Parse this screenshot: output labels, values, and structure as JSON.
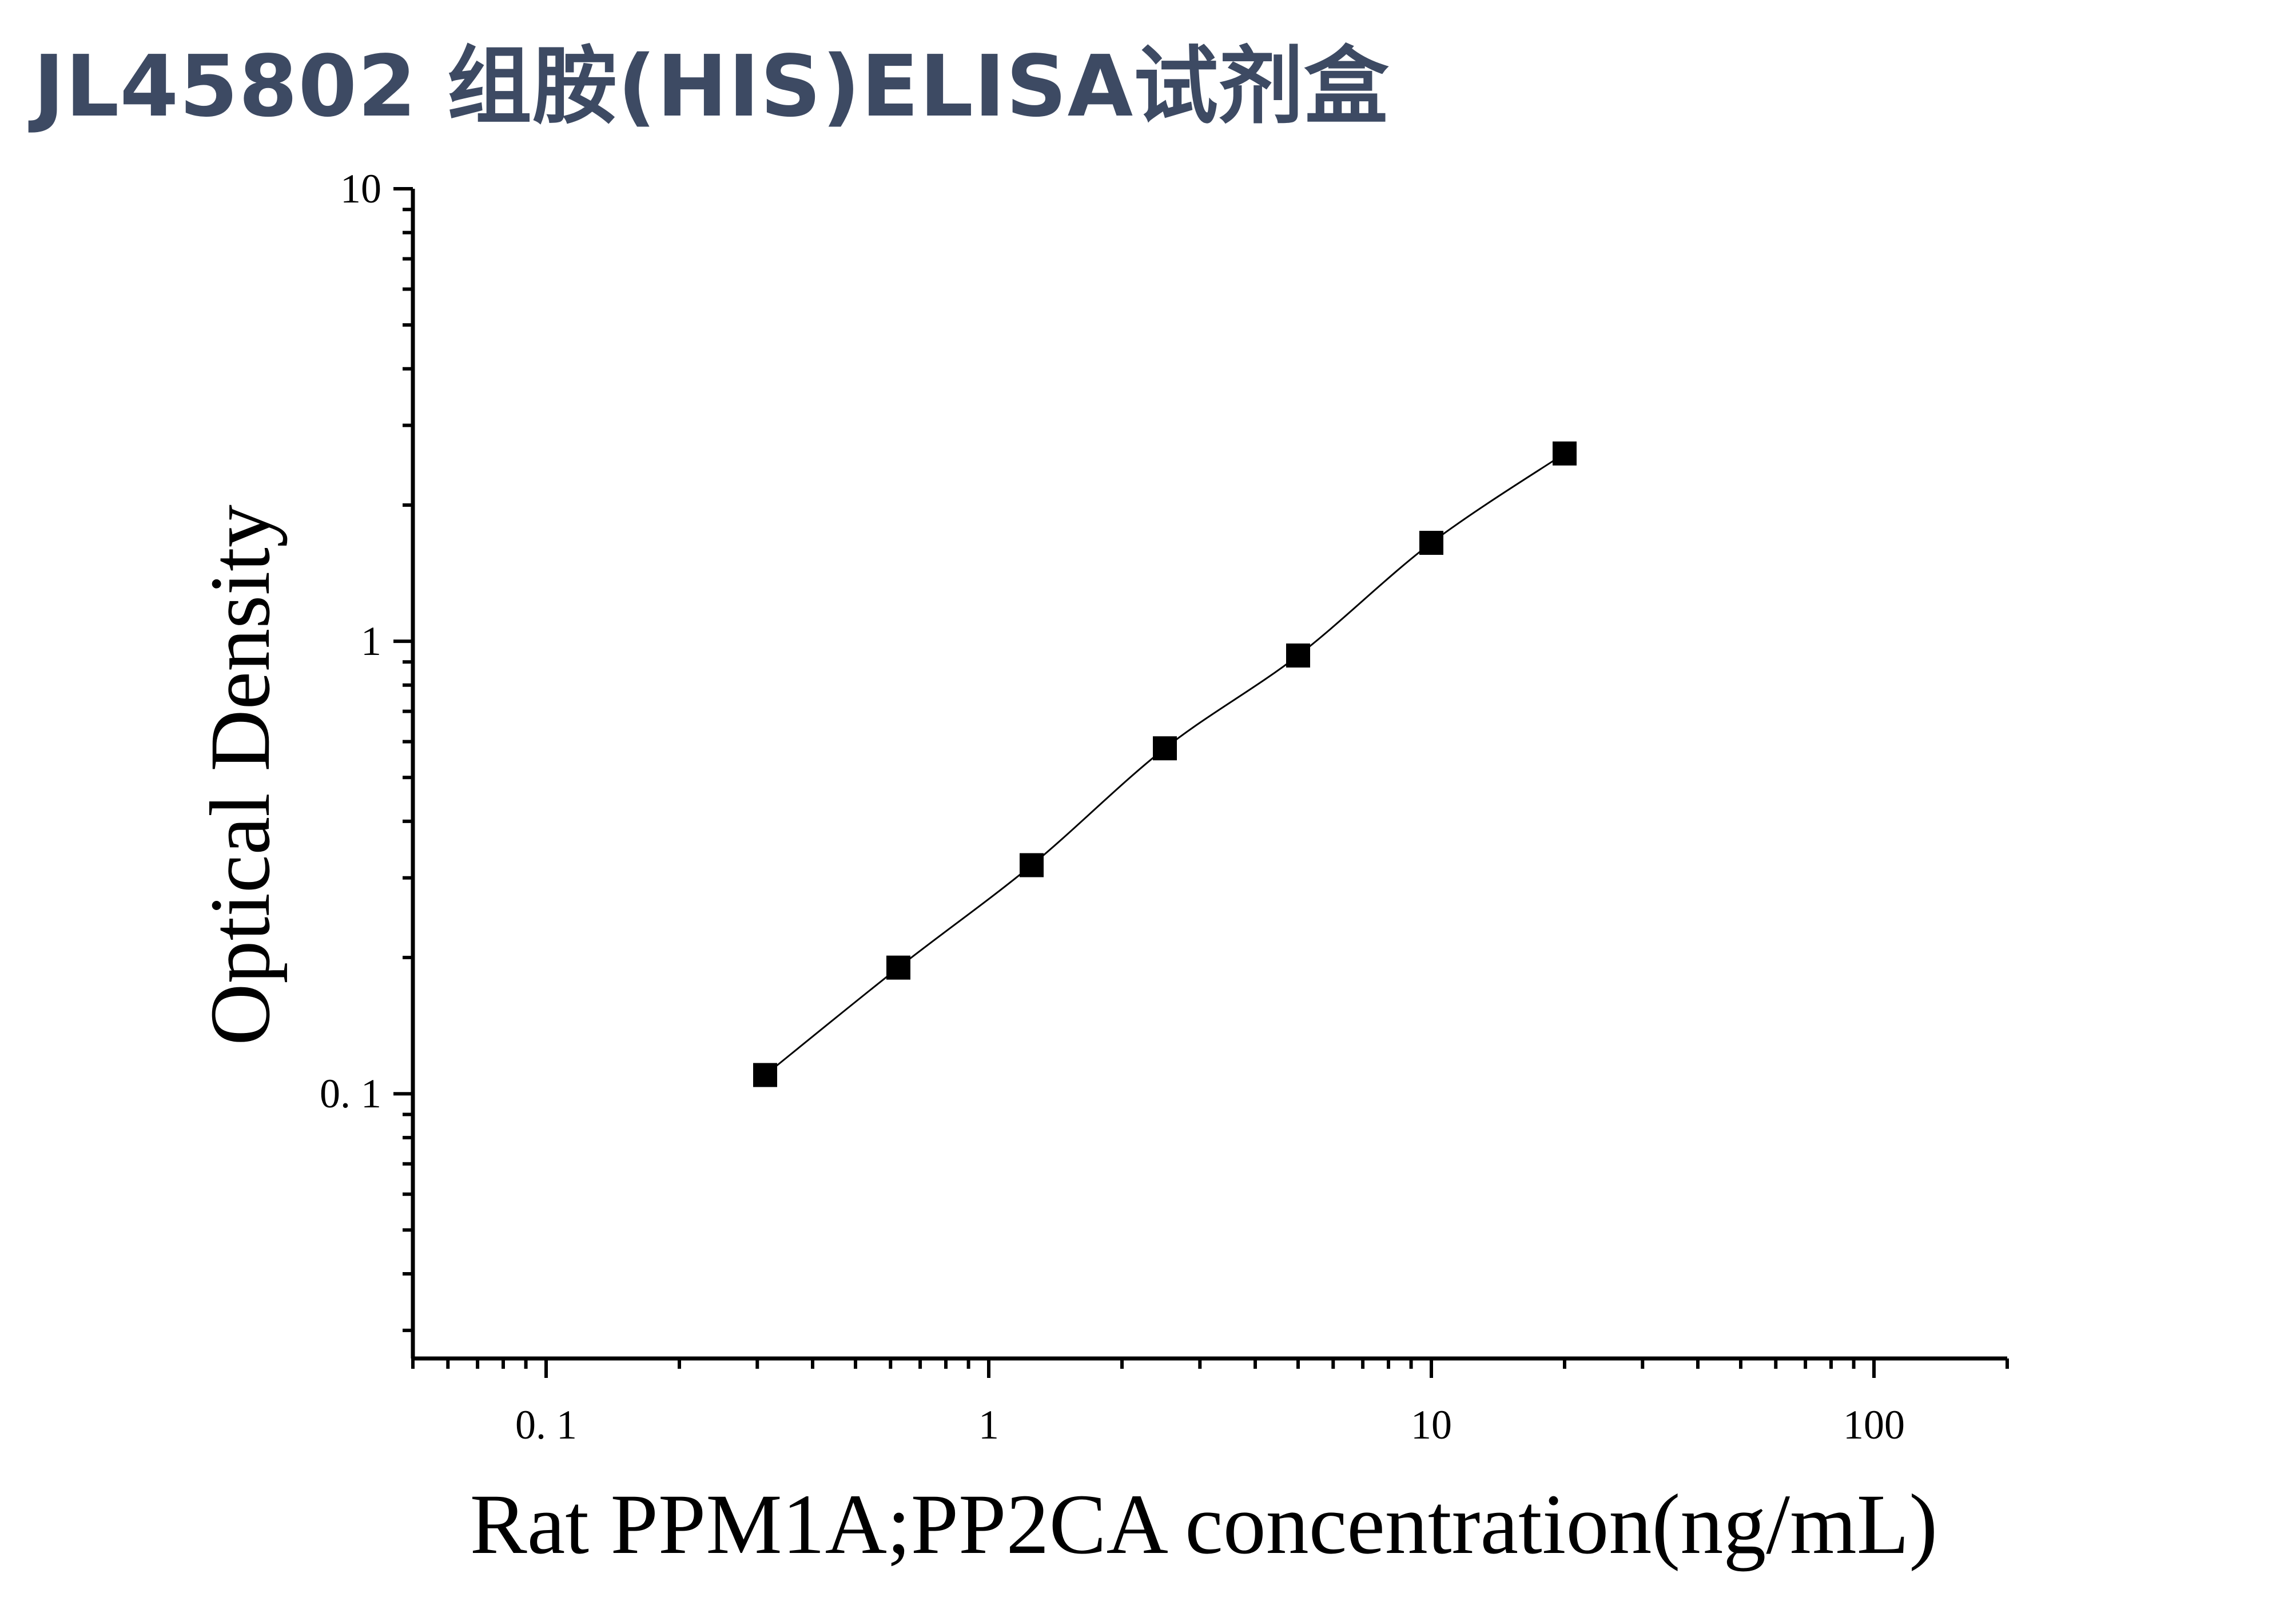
{
  "title": "JL45802 组胺(HIS)ELISA试剂盒",
  "chart_data": {
    "type": "scatter",
    "xlabel": "Rat PPM1A;PP2CA concentration(ng/mL)",
    "ylabel": "Optical Density",
    "x_scale": "log",
    "y_scale": "log",
    "xlim": [
      0.05,
      200
    ],
    "ylim": [
      0.026,
      10
    ],
    "x_ticks": [
      {
        "value": 0.1,
        "label": "0. 1"
      },
      {
        "value": 1,
        "label": "1"
      },
      {
        "value": 10,
        "label": "10"
      },
      {
        "value": 100,
        "label": "100"
      }
    ],
    "y_ticks": [
      {
        "value": 0.1,
        "label": "0. 1"
      },
      {
        "value": 1,
        "label": "1"
      },
      {
        "value": 10,
        "label": "10"
      }
    ],
    "grid": false,
    "series": [
      {
        "marker": "square",
        "color": "#000000",
        "points": [
          {
            "x": 0.3125,
            "y": 0.11
          },
          {
            "x": 0.625,
            "y": 0.19
          },
          {
            "x": 1.25,
            "y": 0.32
          },
          {
            "x": 2.5,
            "y": 0.58
          },
          {
            "x": 5,
            "y": 0.93
          },
          {
            "x": 10,
            "y": 1.65
          },
          {
            "x": 20,
            "y": 2.6
          }
        ]
      }
    ]
  }
}
